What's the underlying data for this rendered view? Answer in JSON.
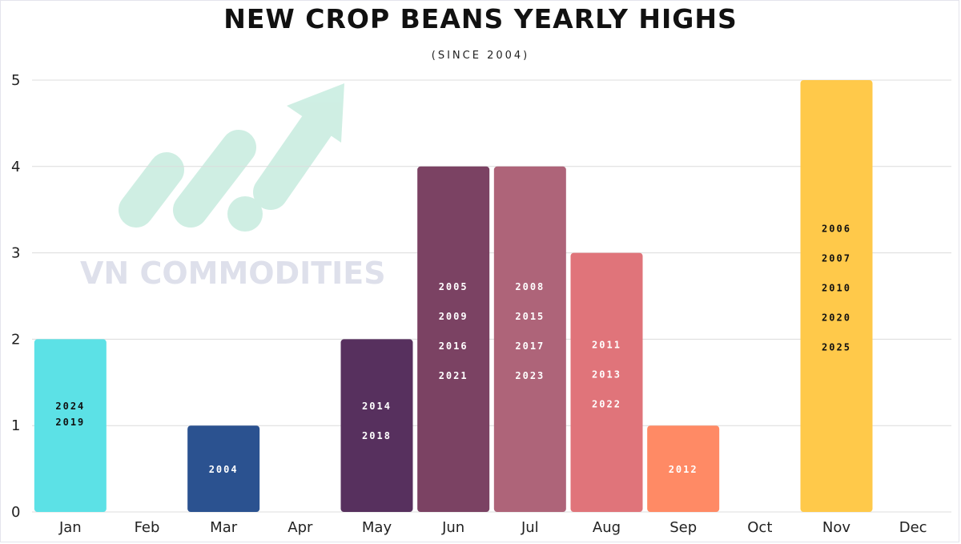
{
  "title": "NEW CROP BEANS YEARLY HIGHS",
  "subtitle": "(SINCE 2004)",
  "watermark": {
    "text": "VN COMMODITIES",
    "icon": "trend-arrow-logo",
    "color": "#a8e6cf"
  },
  "chart_data": {
    "type": "bar",
    "title": "NEW CROP BEANS YEARLY HIGHS",
    "subtitle": "(SINCE 2004)",
    "xlabel": "",
    "ylabel": "",
    "ylim": [
      0,
      5
    ],
    "yticks": [
      "0",
      "1",
      "2",
      "3",
      "4",
      "5"
    ],
    "grid": true,
    "legend": "none",
    "categories": [
      "Jan",
      "Feb",
      "Mar",
      "Apr",
      "May",
      "Jun",
      "Jul",
      "Aug",
      "Sep",
      "Oct",
      "Nov",
      "Dec"
    ],
    "values": [
      2,
      0,
      1,
      0,
      2,
      4,
      4,
      3,
      1,
      0,
      5,
      0
    ],
    "colors": [
      "#5ce1e6",
      "#ffffff",
      "#2b5290",
      "#ffffff",
      "#57305e",
      "#7b4263",
      "#ae6479",
      "#e0747a",
      "#ff8a65",
      "#ffffff",
      "#ffc94a",
      "#ffffff"
    ],
    "label_colors": [
      "#111111",
      "#111111",
      "#ffffff",
      "#111111",
      "#ffffff",
      "#ffffff",
      "#ffffff",
      "#ffffff",
      "#ffffff",
      "#111111",
      "#111111",
      "#111111"
    ],
    "bar_labels": [
      [
        "2024",
        "2019"
      ],
      [],
      [
        "2004"
      ],
      [],
      [
        "2014",
        "2018"
      ],
      [
        "2005",
        "2009",
        "2016",
        "2021"
      ],
      [
        "2008",
        "2015",
        "2017",
        "2023"
      ],
      [
        "2011",
        "2013",
        "2022"
      ],
      [
        "2012"
      ],
      [],
      [
        "2006",
        "2007",
        "2010",
        "2020",
        "2025"
      ],
      []
    ]
  }
}
